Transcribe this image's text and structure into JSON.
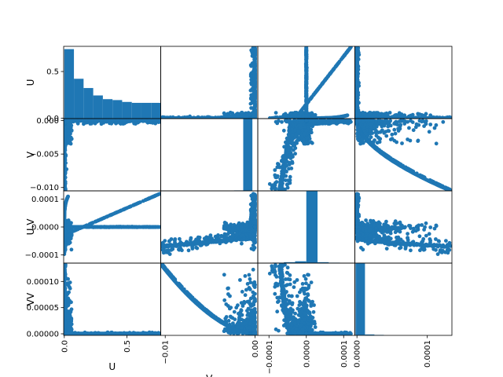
{
  "chart_data": {
    "type": "scatter_matrix",
    "variables": [
      "U",
      "V",
      "U.V",
      "VV"
    ],
    "color": "#1f77b4",
    "diagonal": "histogram",
    "histograms": {
      "U": {
        "edges": [
          0.0,
          0.077,
          0.154,
          0.231,
          0.308,
          0.385,
          0.462,
          0.539,
          0.616,
          0.693,
          0.77
        ],
        "heights": [
          0.75,
          0.43,
          0.33,
          0.25,
          0.21,
          0.2,
          0.18,
          0.17,
          0.17,
          0.17
        ]
      },
      "V": {
        "edges": [
          -0.0105,
          -0.00948,
          -0.00846,
          -0.00744,
          -0.00642,
          -0.0054,
          -0.00438,
          -0.00336,
          -0.00234,
          -0.00132,
          -0.0003
        ],
        "heights": [
          0,
          0,
          0,
          0,
          0,
          0,
          0,
          0,
          0.005,
          0.99
        ]
      },
      "U.V": {
        "edges": [
          -0.00015,
          -0.00012,
          -9e-05,
          -6e-05,
          -3e-05,
          0.0,
          3e-05,
          6e-05,
          9e-05,
          0.00012,
          0.00015
        ],
        "heights": [
          0,
          0,
          0.005,
          0.01,
          0.02,
          0.93,
          0.01,
          0.005,
          0,
          0
        ]
      },
      "VV": {
        "edges": [
          -2e-06,
          1.14e-05,
          2.48e-05,
          3.82e-05,
          5.16e-05,
          6.5e-05,
          7.84e-05,
          9.18e-05,
          0.0001052,
          0.0001186,
          0.000132
        ],
        "heights": [
          0.98,
          0.01,
          0.005,
          0,
          0,
          0,
          0,
          0,
          0,
          0
        ]
      }
    },
    "axis_ranges": {
      "U": [
        -0.005,
        0.77
      ],
      "V": [
        -0.0105,
        0.0003
      ],
      "U.V": [
        -0.00013,
        0.00013
      ],
      "VV": [
        -3e-06,
        0.000135
      ]
    },
    "row_ticks": {
      "U": [
        {
          "v": 0.0,
          "label": "0.0"
        },
        {
          "v": 0.5,
          "label": "0.5"
        }
      ],
      "V": [
        {
          "v": 0.0,
          "label": "0.000"
        },
        {
          "v": -0.005,
          "label": "−0.005"
        },
        {
          "v": -0.01,
          "label": "−0.010"
        }
      ],
      "U.V": [
        {
          "v": 0.0001,
          "label": "0.0001"
        },
        {
          "v": 0.0,
          "label": "0.0000"
        },
        {
          "v": -0.0001,
          "label": "−0.0001"
        }
      ],
      "VV": [
        {
          "v": 0.0001,
          "label": "0.00010"
        },
        {
          "v": 5e-05,
          "label": "0.00005"
        },
        {
          "v": 0.0,
          "label": "0.00000"
        }
      ]
    },
    "col_ticks": {
      "U": [
        {
          "v": 0.0,
          "label": "0.0"
        },
        {
          "v": 0.5,
          "label": "0.5"
        }
      ],
      "V": [
        {
          "v": -0.01,
          "label": "−0.01"
        },
        {
          "v": 0.0,
          "label": "0.00"
        }
      ],
      "U.V": [
        {
          "v": -0.0001,
          "label": "−0.0001"
        },
        {
          "v": 0.0,
          "label": "0.0000"
        },
        {
          "v": 0.0001,
          "label": "0.0001"
        }
      ],
      "VV": [
        {
          "v": 0.0,
          "label": "0.0000"
        },
        {
          "v": 0.0001,
          "label": "0.0001"
        }
      ]
    },
    "row_labels": [
      "U",
      "V",
      "U.V",
      "VV"
    ],
    "col_labels": [
      "U",
      "V",
      "",
      ""
    ]
  }
}
